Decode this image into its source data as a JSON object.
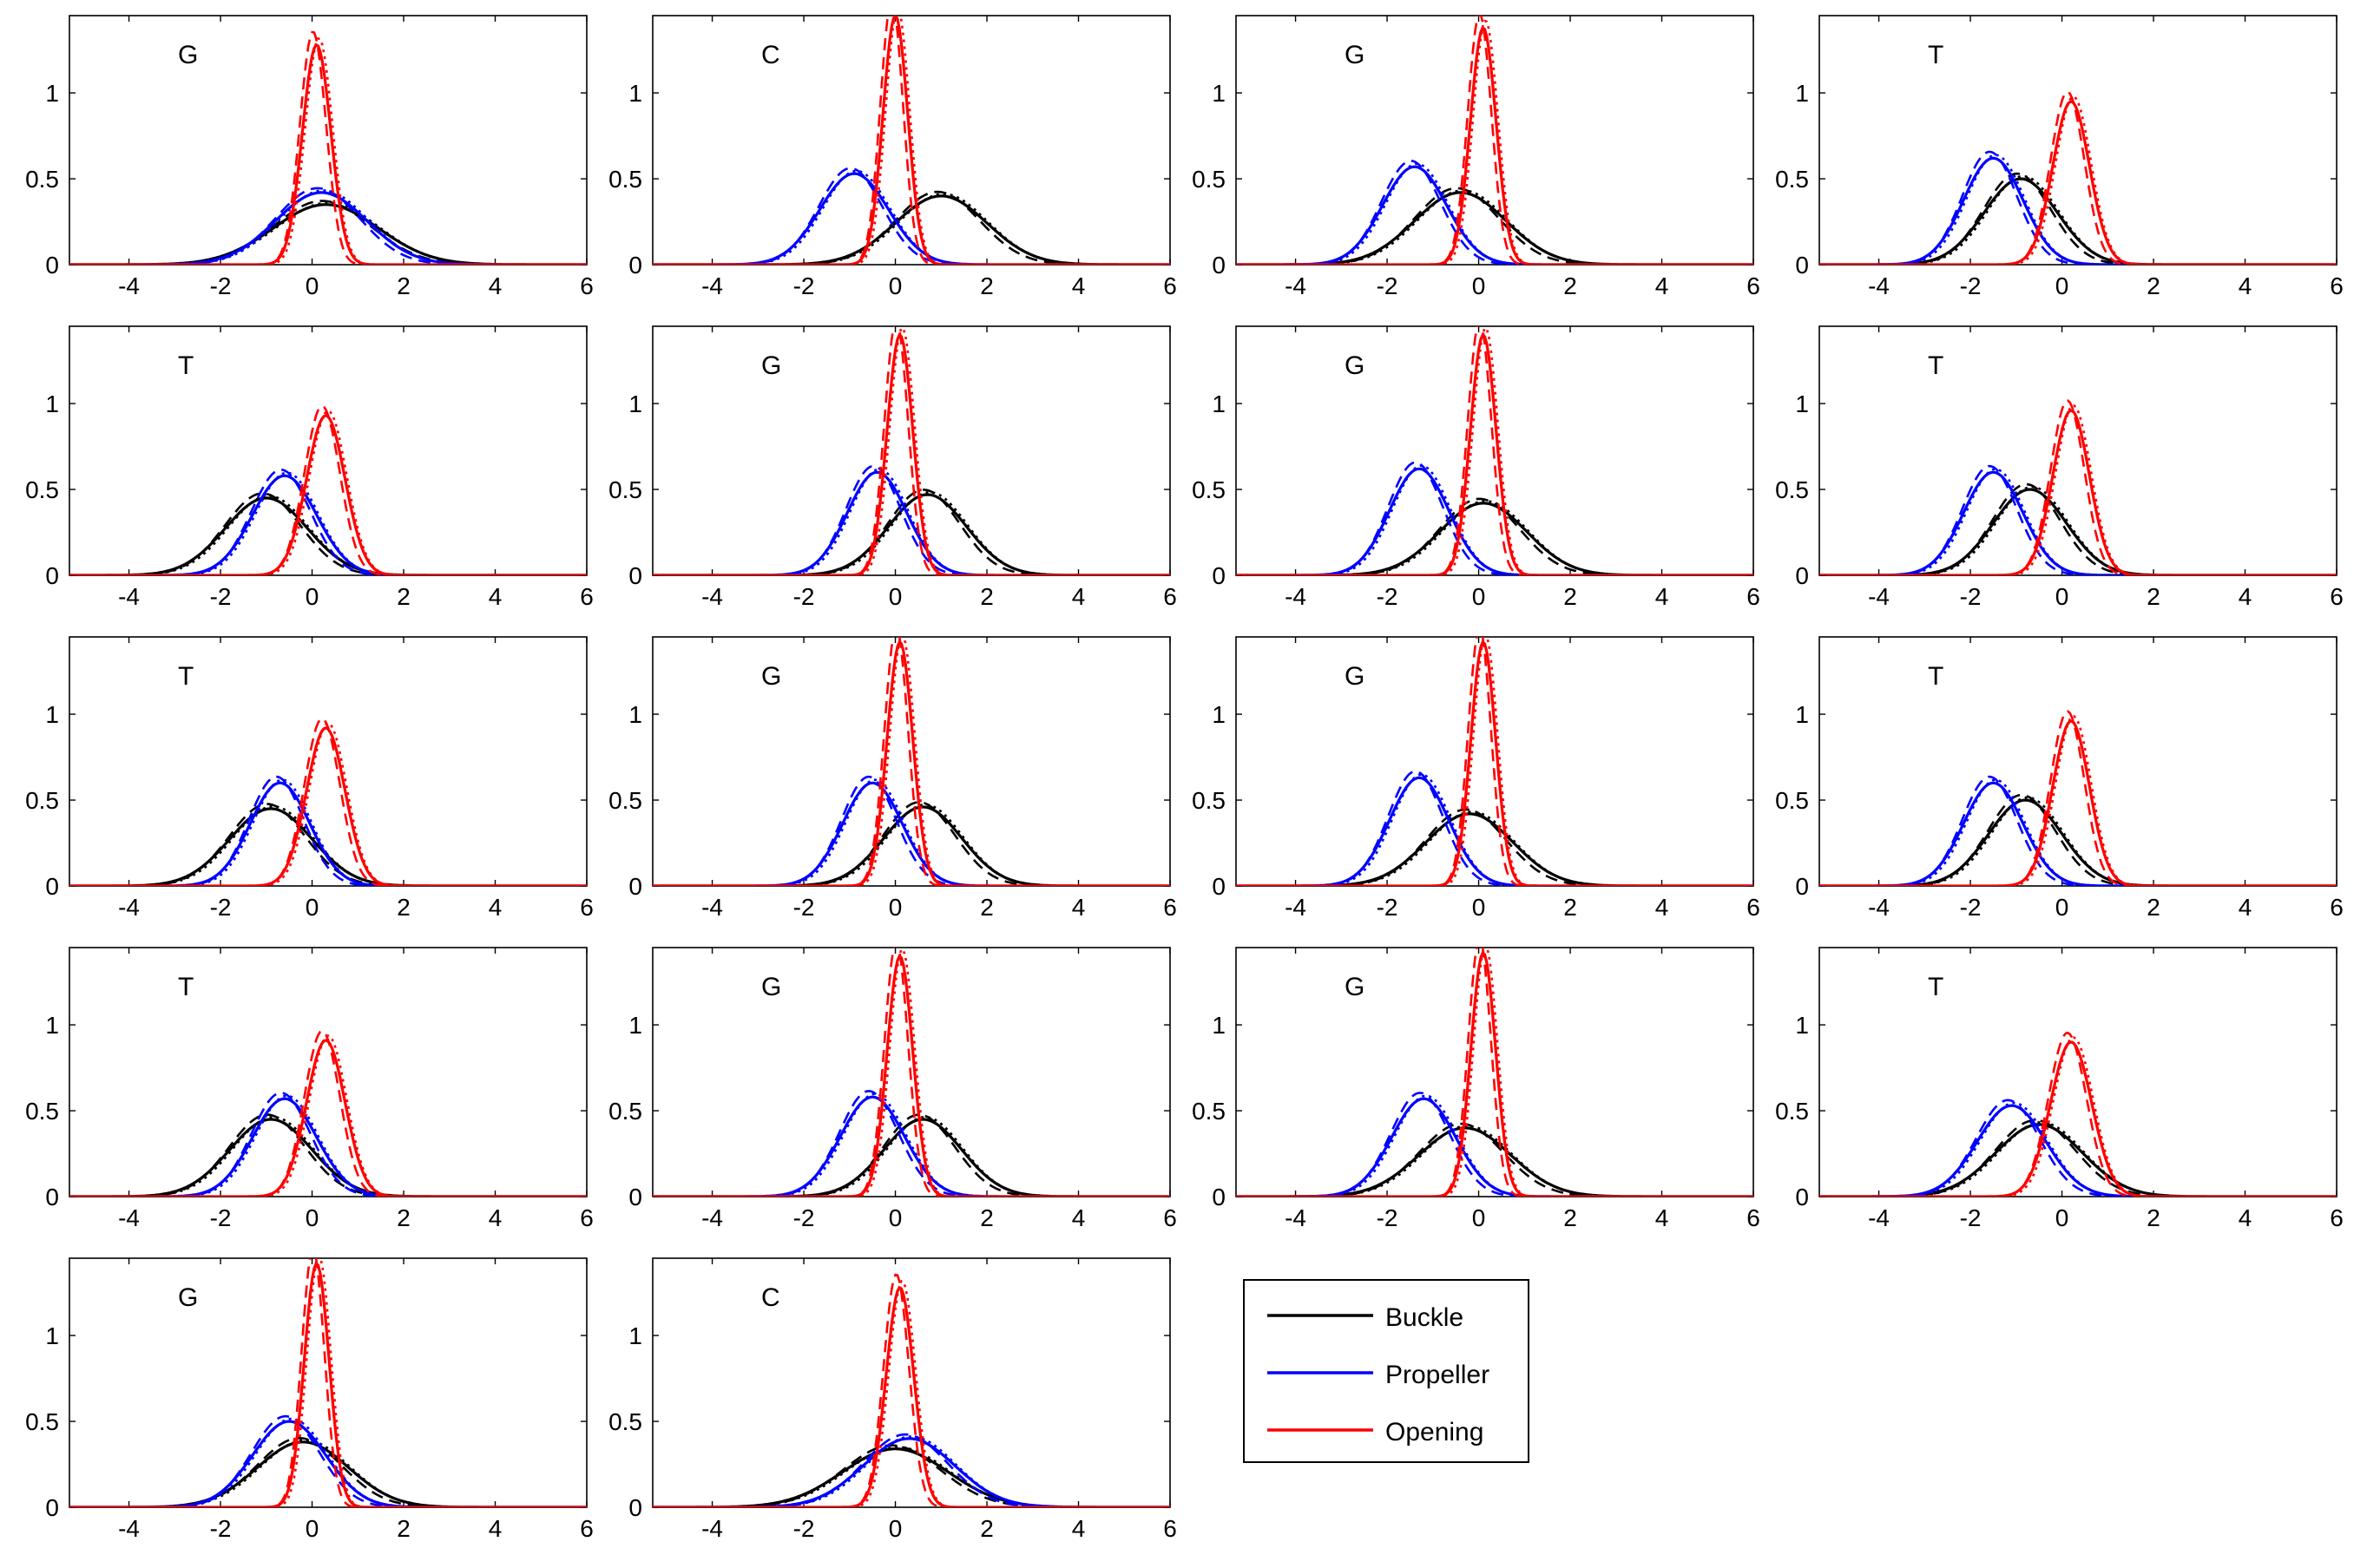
{
  "colors": {
    "buckle": "#000000",
    "propeller": "#0000ff",
    "opening": "#ff0000",
    "axes": "#000000",
    "background": "#ffffff"
  },
  "legend": {
    "placement": "bottom-right",
    "entries": [
      {
        "name": "Buckle",
        "color": "#000000"
      },
      {
        "name": "Propeller",
        "color": "#0000ff"
      },
      {
        "name": "Opening",
        "color": "#ff0000"
      }
    ]
  },
  "chart_data": [
    {
      "type": "line",
      "label": "G",
      "xlim": [
        -5.3,
        6
      ],
      "ylim": [
        0,
        1.45
      ],
      "xticks": [
        -4,
        -2,
        0,
        2,
        4,
        6
      ],
      "yticks": [
        0,
        0.5,
        1
      ],
      "curve": "gaussian",
      "series": [
        {
          "name": "Buckle",
          "mu": 0.3,
          "sigma": 1.15,
          "peak": 0.35
        },
        {
          "name": "Propeller",
          "mu": 0.2,
          "sigma": 1.0,
          "peak": 0.42
        },
        {
          "name": "Opening",
          "mu": 0.1,
          "sigma": 0.31,
          "peak": 1.28
        }
      ]
    },
    {
      "type": "line",
      "label": "C",
      "xlim": [
        -5.3,
        6
      ],
      "ylim": [
        0,
        1.45
      ],
      "xticks": [
        -4,
        -2,
        0,
        2,
        4,
        6
      ],
      "yticks": [
        0,
        0.5,
        1
      ],
      "curve": "gaussian",
      "series": [
        {
          "name": "Buckle",
          "mu": 1.0,
          "sigma": 1.0,
          "peak": 0.4
        },
        {
          "name": "Propeller",
          "mu": -0.9,
          "sigma": 0.75,
          "peak": 0.53
        },
        {
          "name": "Opening",
          "mu": 0.0,
          "sigma": 0.27,
          "peak": 1.45
        }
      ]
    },
    {
      "type": "line",
      "label": "G",
      "xlim": [
        -5.3,
        6
      ],
      "ylim": [
        0,
        1.45
      ],
      "xticks": [
        -4,
        -2,
        0,
        2,
        4,
        6
      ],
      "yticks": [
        0,
        0.5,
        1
      ],
      "curve": "gaussian",
      "series": [
        {
          "name": "Buckle",
          "mu": -0.4,
          "sigma": 1.0,
          "peak": 0.42
        },
        {
          "name": "Propeller",
          "mu": -1.4,
          "sigma": 0.7,
          "peak": 0.57
        },
        {
          "name": "Opening",
          "mu": 0.1,
          "sigma": 0.28,
          "peak": 1.38
        }
      ]
    },
    {
      "type": "line",
      "label": "T",
      "xlim": [
        -5.3,
        6
      ],
      "ylim": [
        0,
        1.45
      ],
      "xticks": [
        -4,
        -2,
        0,
        2,
        4,
        6
      ],
      "yticks": [
        0,
        0.5,
        1
      ],
      "curve": "gaussian",
      "series": [
        {
          "name": "Buckle",
          "mu": -0.9,
          "sigma": 0.8,
          "peak": 0.5
        },
        {
          "name": "Propeller",
          "mu": -1.5,
          "sigma": 0.65,
          "peak": 0.62
        },
        {
          "name": "Opening",
          "mu": 0.2,
          "sigma": 0.4,
          "peak": 0.95
        }
      ]
    },
    {
      "type": "line",
      "label": "T",
      "xlim": [
        -5.3,
        6
      ],
      "ylim": [
        0,
        1.45
      ],
      "xticks": [
        -4,
        -2,
        0,
        2,
        4,
        6
      ],
      "yticks": [
        0,
        0.5,
        1
      ],
      "curve": "gaussian",
      "series": [
        {
          "name": "Buckle",
          "mu": -1.0,
          "sigma": 0.9,
          "peak": 0.45
        },
        {
          "name": "Propeller",
          "mu": -0.6,
          "sigma": 0.7,
          "peak": 0.58
        },
        {
          "name": "Opening",
          "mu": 0.3,
          "sigma": 0.42,
          "peak": 0.93
        }
      ]
    },
    {
      "type": "line",
      "label": "G",
      "xlim": [
        -5.3,
        6
      ],
      "ylim": [
        0,
        1.45
      ],
      "xticks": [
        -4,
        -2,
        0,
        2,
        4,
        6
      ],
      "yticks": [
        0,
        0.5,
        1
      ],
      "curve": "gaussian",
      "series": [
        {
          "name": "Buckle",
          "mu": 0.7,
          "sigma": 0.85,
          "peak": 0.47
        },
        {
          "name": "Propeller",
          "mu": -0.4,
          "sigma": 0.65,
          "peak": 0.6
        },
        {
          "name": "Opening",
          "mu": 0.1,
          "sigma": 0.28,
          "peak": 1.4
        }
      ]
    },
    {
      "type": "line",
      "label": "G",
      "xlim": [
        -5.3,
        6
      ],
      "ylim": [
        0,
        1.45
      ],
      "xticks": [
        -4,
        -2,
        0,
        2,
        4,
        6
      ],
      "yticks": [
        0,
        0.5,
        1
      ],
      "curve": "gaussian",
      "series": [
        {
          "name": "Buckle",
          "mu": 0.1,
          "sigma": 0.95,
          "peak": 0.42
        },
        {
          "name": "Propeller",
          "mu": -1.3,
          "sigma": 0.65,
          "peak": 0.62
        },
        {
          "name": "Opening",
          "mu": 0.1,
          "sigma": 0.28,
          "peak": 1.4
        }
      ]
    },
    {
      "type": "line",
      "label": "T",
      "xlim": [
        -5.3,
        6
      ],
      "ylim": [
        0,
        1.45
      ],
      "xticks": [
        -4,
        -2,
        0,
        2,
        4,
        6
      ],
      "yticks": [
        0,
        0.5,
        1
      ],
      "curve": "gaussian",
      "series": [
        {
          "name": "Buckle",
          "mu": -0.7,
          "sigma": 0.8,
          "peak": 0.5
        },
        {
          "name": "Propeller",
          "mu": -1.5,
          "sigma": 0.65,
          "peak": 0.6
        },
        {
          "name": "Opening",
          "mu": 0.2,
          "sigma": 0.4,
          "peak": 0.96
        }
      ]
    },
    {
      "type": "line",
      "label": "T",
      "xlim": [
        -5.3,
        6
      ],
      "ylim": [
        0,
        1.45
      ],
      "xticks": [
        -4,
        -2,
        0,
        2,
        4,
        6
      ],
      "yticks": [
        0,
        0.5,
        1
      ],
      "curve": "gaussian",
      "series": [
        {
          "name": "Buckle",
          "mu": -0.9,
          "sigma": 0.9,
          "peak": 0.45
        },
        {
          "name": "Propeller",
          "mu": -0.7,
          "sigma": 0.65,
          "peak": 0.6
        },
        {
          "name": "Opening",
          "mu": 0.3,
          "sigma": 0.42,
          "peak": 0.92
        }
      ]
    },
    {
      "type": "line",
      "label": "G",
      "xlim": [
        -5.3,
        6
      ],
      "ylim": [
        0,
        1.45
      ],
      "xticks": [
        -4,
        -2,
        0,
        2,
        4,
        6
      ],
      "yticks": [
        0,
        0.5,
        1
      ],
      "curve": "gaussian",
      "series": [
        {
          "name": "Buckle",
          "mu": 0.6,
          "sigma": 0.85,
          "peak": 0.46
        },
        {
          "name": "Propeller",
          "mu": -0.5,
          "sigma": 0.65,
          "peak": 0.6
        },
        {
          "name": "Opening",
          "mu": 0.1,
          "sigma": 0.28,
          "peak": 1.42
        }
      ]
    },
    {
      "type": "line",
      "label": "G",
      "xlim": [
        -5.3,
        6
      ],
      "ylim": [
        0,
        1.45
      ],
      "xticks": [
        -4,
        -2,
        0,
        2,
        4,
        6
      ],
      "yticks": [
        0,
        0.5,
        1
      ],
      "curve": "gaussian",
      "series": [
        {
          "name": "Buckle",
          "mu": -0.2,
          "sigma": 0.95,
          "peak": 0.42
        },
        {
          "name": "Propeller",
          "mu": -1.3,
          "sigma": 0.65,
          "peak": 0.63
        },
        {
          "name": "Opening",
          "mu": 0.1,
          "sigma": 0.27,
          "peak": 1.42
        }
      ]
    },
    {
      "type": "line",
      "label": "T",
      "xlim": [
        -5.3,
        6
      ],
      "ylim": [
        0,
        1.45
      ],
      "xticks": [
        -4,
        -2,
        0,
        2,
        4,
        6
      ],
      "yticks": [
        0,
        0.5,
        1
      ],
      "curve": "gaussian",
      "series": [
        {
          "name": "Buckle",
          "mu": -0.8,
          "sigma": 0.8,
          "peak": 0.5
        },
        {
          "name": "Propeller",
          "mu": -1.5,
          "sigma": 0.65,
          "peak": 0.6
        },
        {
          "name": "Opening",
          "mu": 0.2,
          "sigma": 0.4,
          "peak": 0.96
        }
      ]
    },
    {
      "type": "line",
      "label": "T",
      "xlim": [
        -5.3,
        6
      ],
      "ylim": [
        0,
        1.45
      ],
      "xticks": [
        -4,
        -2,
        0,
        2,
        4,
        6
      ],
      "yticks": [
        0,
        0.5,
        1
      ],
      "curve": "gaussian",
      "series": [
        {
          "name": "Buckle",
          "mu": -0.9,
          "sigma": 0.9,
          "peak": 0.45
        },
        {
          "name": "Propeller",
          "mu": -0.6,
          "sigma": 0.7,
          "peak": 0.57
        },
        {
          "name": "Opening",
          "mu": 0.3,
          "sigma": 0.42,
          "peak": 0.91
        }
      ]
    },
    {
      "type": "line",
      "label": "G",
      "xlim": [
        -5.3,
        6
      ],
      "ylim": [
        0,
        1.45
      ],
      "xticks": [
        -4,
        -2,
        0,
        2,
        4,
        6
      ],
      "yticks": [
        0,
        0.5,
        1
      ],
      "curve": "gaussian",
      "series": [
        {
          "name": "Buckle",
          "mu": 0.6,
          "sigma": 0.85,
          "peak": 0.45
        },
        {
          "name": "Propeller",
          "mu": -0.5,
          "sigma": 0.7,
          "peak": 0.58
        },
        {
          "name": "Opening",
          "mu": 0.1,
          "sigma": 0.28,
          "peak": 1.4
        }
      ]
    },
    {
      "type": "line",
      "label": "G",
      "xlim": [
        -5.3,
        6
      ],
      "ylim": [
        0,
        1.45
      ],
      "xticks": [
        -4,
        -2,
        0,
        2,
        4,
        6
      ],
      "yticks": [
        0,
        0.5,
        1
      ],
      "curve": "gaussian",
      "series": [
        {
          "name": "Buckle",
          "mu": -0.3,
          "sigma": 1.0,
          "peak": 0.4
        },
        {
          "name": "Propeller",
          "mu": -1.2,
          "sigma": 0.7,
          "peak": 0.57
        },
        {
          "name": "Opening",
          "mu": 0.1,
          "sigma": 0.27,
          "peak": 1.42
        }
      ]
    },
    {
      "type": "line",
      "label": "T",
      "xlim": [
        -5.3,
        6
      ],
      "ylim": [
        0,
        1.45
      ],
      "xticks": [
        -4,
        -2,
        0,
        2,
        4,
        6
      ],
      "yticks": [
        0,
        0.5,
        1
      ],
      "curve": "gaussian",
      "series": [
        {
          "name": "Buckle",
          "mu": -0.5,
          "sigma": 0.95,
          "peak": 0.42
        },
        {
          "name": "Propeller",
          "mu": -1.1,
          "sigma": 0.75,
          "peak": 0.53
        },
        {
          "name": "Opening",
          "mu": 0.2,
          "sigma": 0.45,
          "peak": 0.9
        }
      ]
    },
    {
      "type": "line",
      "label": "G",
      "xlim": [
        -5.3,
        6
      ],
      "ylim": [
        0,
        1.45
      ],
      "xticks": [
        -4,
        -2,
        0,
        2,
        4,
        6
      ],
      "yticks": [
        0,
        0.5,
        1
      ],
      "curve": "gaussian",
      "series": [
        {
          "name": "Buckle",
          "mu": -0.2,
          "sigma": 1.0,
          "peak": 0.38
        },
        {
          "name": "Propeller",
          "mu": -0.5,
          "sigma": 0.8,
          "peak": 0.5
        },
        {
          "name": "Opening",
          "mu": 0.1,
          "sigma": 0.27,
          "peak": 1.42
        }
      ]
    },
    {
      "type": "line",
      "label": "C",
      "xlim": [
        -5.3,
        6
      ],
      "ylim": [
        0,
        1.45
      ],
      "xticks": [
        -4,
        -2,
        0,
        2,
        4,
        6
      ],
      "yticks": [
        0,
        0.5,
        1
      ],
      "curve": "gaussian",
      "series": [
        {
          "name": "Buckle",
          "mu": 0.0,
          "sigma": 1.15,
          "peak": 0.34
        },
        {
          "name": "Propeller",
          "mu": 0.3,
          "sigma": 1.0,
          "peak": 0.4
        },
        {
          "name": "Opening",
          "mu": 0.1,
          "sigma": 0.3,
          "peak": 1.28
        }
      ]
    }
  ]
}
